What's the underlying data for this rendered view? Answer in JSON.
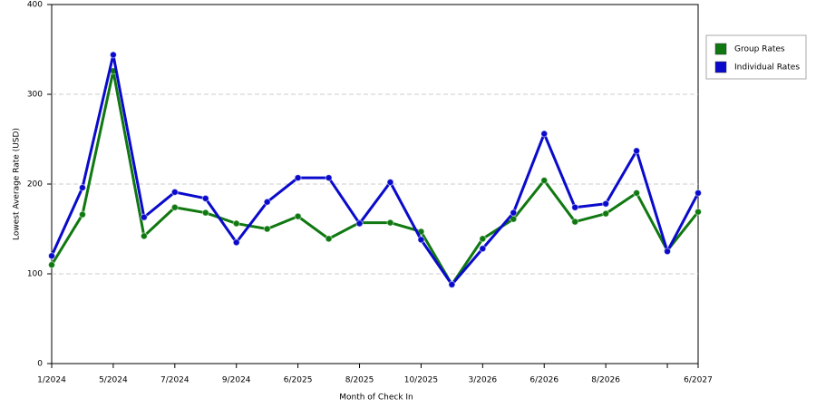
{
  "chart_data": {
    "type": "line",
    "x_label": "Month of Check In",
    "y_label": "Lowest Average Rate (USD)",
    "categories": [
      "1/2024",
      null,
      "5/2024",
      null,
      "7/2024",
      null,
      "9/2024",
      null,
      "6/2025",
      null,
      "8/2025",
      null,
      "10/2025",
      null,
      "3/2026",
      null,
      "6/2026",
      null,
      "8/2026",
      null,
      null,
      "6/2027"
    ],
    "series": [
      {
        "name": "Group Rates",
        "color": "#107810",
        "values": [
          110,
          166,
          326,
          142,
          174,
          168,
          156,
          150,
          164,
          139,
          157,
          157,
          147,
          88,
          139,
          161,
          204,
          158,
          167,
          190,
          126,
          169
        ]
      },
      {
        "name": "Individual Rates",
        "color": "#0a0acc",
        "values": [
          120,
          196,
          344,
          163,
          191,
          184,
          135,
          180,
          207,
          207,
          156,
          202,
          138,
          88,
          128,
          168,
          256,
          174,
          178,
          237,
          125,
          190
        ]
      }
    ],
    "ylim": [
      0,
      400
    ],
    "yticks": [
      0,
      100,
      200,
      300,
      400
    ],
    "grid": true,
    "legend": "right"
  }
}
